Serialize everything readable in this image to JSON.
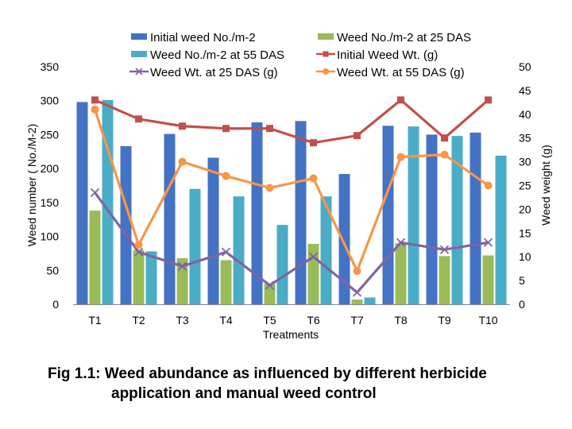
{
  "chart_data": {
    "type": "bar+line",
    "categories": [
      "T1",
      "T2",
      "T3",
      "T4",
      "T5",
      "T6",
      "T7",
      "T8",
      "T9",
      "T10"
    ],
    "xlabel": "Treatments",
    "ylabel_left": "Weed number ( No./M-2)",
    "ylabel_right": "Weed weight (g)",
    "ylim_left": [
      0,
      350
    ],
    "yticks_left": [
      0,
      50,
      100,
      150,
      200,
      250,
      300,
      350
    ],
    "ylim_right": [
      0,
      50
    ],
    "yticks_right": [
      0,
      5,
      10,
      15,
      20,
      25,
      30,
      35,
      40,
      45,
      50
    ],
    "bar_series": [
      {
        "name": "Initial weed No./m-2",
        "color": "#4472C4",
        "values": [
          298,
          233,
          251,
          216,
          268,
          270,
          192,
          263,
          250,
          253
        ]
      },
      {
        "name": "Weed  No./m-2 at 25 DAS",
        "color": "#9BBB59",
        "values": [
          138,
          80,
          68,
          65,
          30,
          89,
          7,
          90,
          71,
          72
        ]
      },
      {
        "name": "Weed  No./m-2 at 55 DAS",
        "color": "#4BACC6",
        "values": [
          301,
          78,
          170,
          159,
          117,
          159,
          10,
          262,
          248,
          219
        ]
      }
    ],
    "line_series": [
      {
        "name": "Initial Weed Wt. (g)",
        "color": "#C0504D",
        "marker": "square",
        "values": [
          43,
          39,
          37.5,
          37,
          37,
          34,
          35.5,
          43,
          35,
          43
        ]
      },
      {
        "name": "Weed Wt. at 25 DAS (g)",
        "color": "#8064A2",
        "marker": "x",
        "values": [
          23.5,
          11,
          8,
          11,
          4,
          10,
          2.5,
          13,
          11.5,
          13
        ]
      },
      {
        "name": "Weed Wt. at 55 DAS (g)",
        "color": "#F79646",
        "marker": "circle",
        "values": [
          41,
          12.5,
          30,
          27,
          24.5,
          26.5,
          7,
          31,
          31.5,
          25
        ]
      }
    ],
    "legend": [
      "Initial weed No./m-2",
      "Weed  No./m-2 at 25 DAS",
      "Weed  No./m-2 at 55 DAS",
      "Initial Weed Wt. (g)",
      "Weed Wt. at 25 DAS (g)",
      "Weed Wt. at 55 DAS (g)"
    ]
  },
  "caption": {
    "line1": "Fig 1.1: Weed abundance as influenced by different herbicide",
    "line2": "application and manual weed control"
  }
}
